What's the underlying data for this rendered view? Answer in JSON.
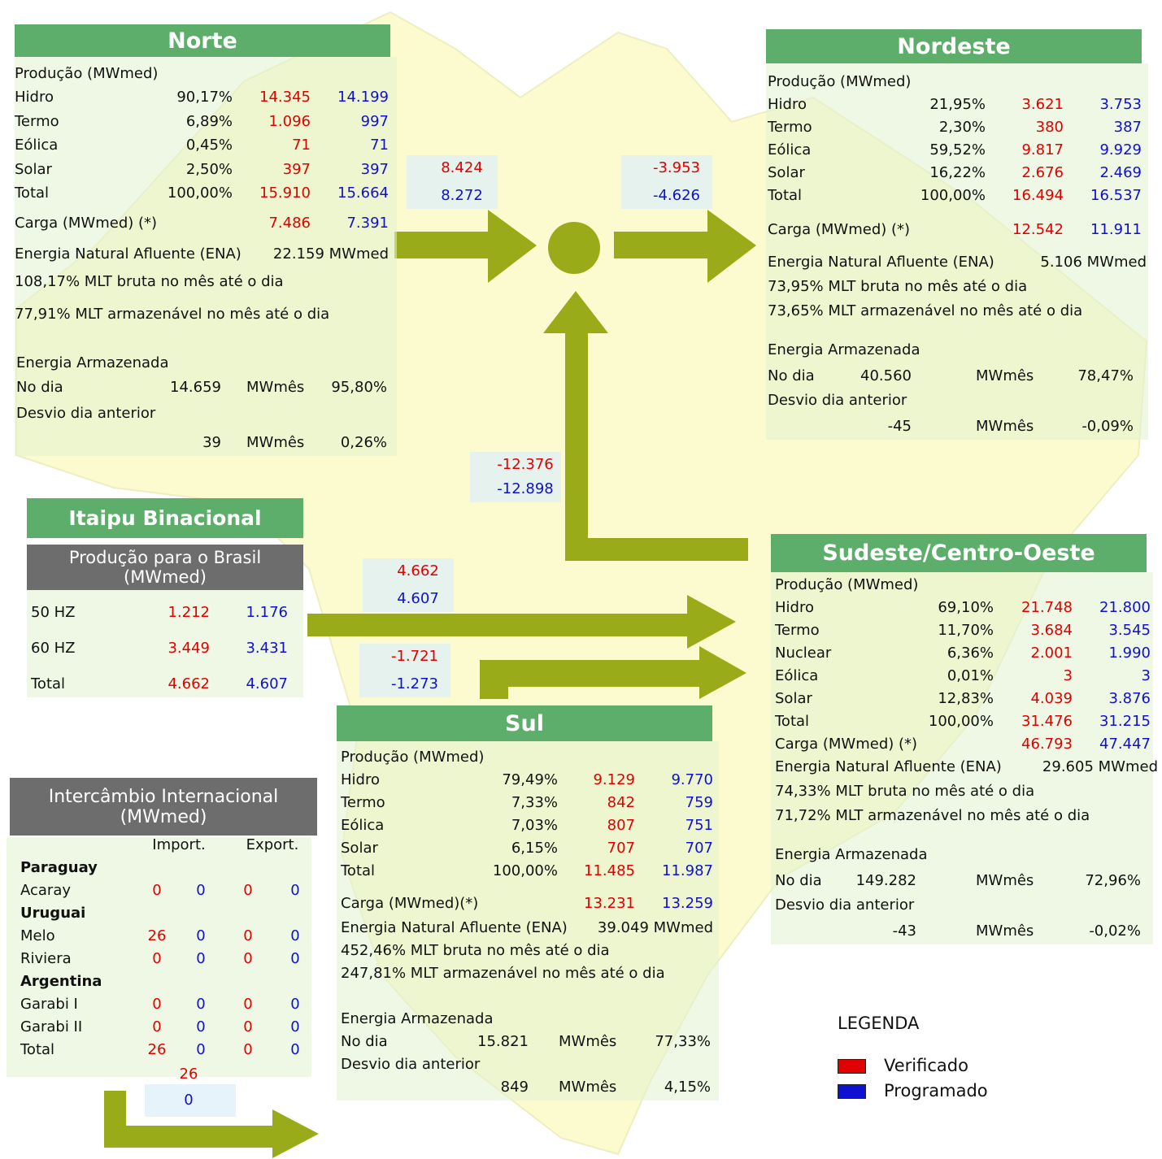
{
  "colors": {
    "verificado": "#e00000",
    "programado": "#1010d0"
  },
  "norte": {
    "title": "Norte",
    "producao": {
      "label": "Produção (MWmed)",
      "rows": [
        [
          "Hidro",
          "90,17%",
          "14.345",
          "14.199"
        ],
        [
          "Termo",
          "6,89%",
          "1.096",
          "997"
        ],
        [
          "Eólica",
          "0,45%",
          "71",
          "71"
        ],
        [
          "Solar",
          "2,50%",
          "397",
          "397"
        ],
        [
          "Total",
          "100,00%",
          "15.910",
          "15.664"
        ]
      ]
    },
    "carga": [
      "Carga (MWmed) (*)",
      "7.486",
      "7.391"
    ],
    "ena": [
      "Energia Natural Afluente (ENA)",
      "22.159 MWmed"
    ],
    "mlt_bruta": "108,17% MLT bruta no mês até o dia",
    "mlt_armazenavel": "77,91% MLT armazenável no mês até o dia",
    "armazenada": {
      "label": "Energia Armazenada",
      "no_dia": [
        "No dia",
        "14.659",
        "MWmês",
        "95,80%"
      ],
      "desvio_label": "Desvio dia anterior",
      "desvio": [
        "39",
        "MWmês",
        "0,26%"
      ]
    }
  },
  "nordeste": {
    "title": "Nordeste",
    "producao": {
      "label": "Produção (MWmed)",
      "rows": [
        [
          "Hidro",
          "21,95%",
          "3.621",
          "3.753"
        ],
        [
          "Termo",
          "2,30%",
          "380",
          "387"
        ],
        [
          "Eólica",
          "59,52%",
          "9.817",
          "9.929"
        ],
        [
          "Solar",
          "16,22%",
          "2.676",
          "2.469"
        ],
        [
          "Total",
          "100,00%",
          "16.494",
          "16.537"
        ]
      ]
    },
    "carga": [
      "Carga (MWmed) (*)",
      "12.542",
      "11.911"
    ],
    "ena": [
      "Energia Natural Afluente (ENA)",
      "5.106 MWmed"
    ],
    "mlt_bruta": "73,95% MLT bruta no mês até o dia",
    "mlt_armazenavel": "73,65% MLT armazenável no mês até o dia",
    "armazenada": {
      "label": "Energia Armazenada",
      "no_dia": [
        "No dia",
        "40.560",
        "MWmês",
        "78,47%"
      ],
      "desvio_label": "Desvio dia anterior",
      "desvio": [
        "-45",
        "MWmês",
        "-0,09%"
      ]
    }
  },
  "sudeste": {
    "title": "Sudeste/Centro-Oeste",
    "producao": {
      "label": "Produção (MWmed)",
      "rows": [
        [
          "Hidro",
          "69,10%",
          "21.748",
          "21.800"
        ],
        [
          "Termo",
          "11,70%",
          "3.684",
          "3.545"
        ],
        [
          "Nuclear",
          "6,36%",
          "2.001",
          "1.990"
        ],
        [
          "Eólica",
          "0,01%",
          "3",
          "3"
        ],
        [
          "Solar",
          "12,83%",
          "4.039",
          "3.876"
        ],
        [
          "Total",
          "100,00%",
          "31.476",
          "31.215"
        ]
      ]
    },
    "carga": [
      "Carga (MWmed) (*)",
      "46.793",
      "47.447"
    ],
    "ena": [
      "Energia Natural Afluente (ENA)",
      "29.605 MWmed"
    ],
    "mlt_bruta": "74,33% MLT bruta no mês até o dia",
    "mlt_armazenavel": "71,72% MLT armazenável no mês até o dia",
    "armazenada": {
      "label": "Energia Armazenada",
      "no_dia": [
        "No dia",
        "149.282",
        "MWmês",
        "72,96%"
      ],
      "desvio_label": "Desvio dia anterior",
      "desvio": [
        "-43",
        "MWmês",
        "-0,02%"
      ]
    }
  },
  "sul": {
    "title": "Sul",
    "producao": {
      "label": "Produção (MWmed)",
      "rows": [
        [
          "Hidro",
          "79,49%",
          "9.129",
          "9.770"
        ],
        [
          "Termo",
          "7,33%",
          "842",
          "759"
        ],
        [
          "Eólica",
          "7,03%",
          "807",
          "751"
        ],
        [
          "Solar",
          "6,15%",
          "707",
          "707"
        ],
        [
          "Total",
          "100,00%",
          "11.485",
          "11.987"
        ]
      ]
    },
    "carga": [
      "Carga (MWmed)(*)",
      "13.231",
      "13.259"
    ],
    "ena": [
      "Energia Natural Afluente (ENA)",
      "39.049 MWmed"
    ],
    "mlt_bruta": "452,46% MLT bruta no mês até o dia",
    "mlt_armazenavel": "247,81% MLT armazenável no mês até o dia",
    "armazenada": {
      "label": "Energia Armazenada",
      "no_dia": [
        "No dia",
        "15.821",
        "MWmês",
        "77,33%"
      ],
      "desvio_label": "Desvio dia anterior",
      "desvio": [
        "849",
        "MWmês",
        "4,15%"
      ]
    }
  },
  "itaipu": {
    "title": "Itaipu Binacional",
    "subtitle": "Produção para o Brasil (MWmed)",
    "rows": [
      [
        "50 HZ",
        "1.212",
        "1.176"
      ],
      [
        "60 HZ",
        "3.449",
        "3.431"
      ],
      [
        "Total",
        "4.662",
        "4.607"
      ]
    ]
  },
  "internacional": {
    "title": "Intercâmbio Internacional (MWmed)",
    "import_label": "Import.",
    "export_label": "Export.",
    "countries": [
      {
        "name": "Paraguay",
        "plants": [
          [
            "Acaray",
            "0",
            "0",
            "0",
            "0"
          ]
        ]
      },
      {
        "name": "Uruguai",
        "plants": [
          [
            "Melo",
            "26",
            "0",
            "0",
            "0"
          ],
          [
            "Riviera",
            "0",
            "0",
            "0",
            "0"
          ]
        ]
      },
      {
        "name": "Argentina",
        "plants": [
          [
            "Garabi I",
            "0",
            "0",
            "0",
            "0"
          ],
          [
            "Garabi II",
            "0",
            "0",
            "0",
            "0"
          ]
        ]
      }
    ],
    "total": [
      "Total",
      "26",
      "0",
      "0",
      "0"
    ],
    "flow": [
      "26",
      "0"
    ]
  },
  "fluxos": {
    "norte": [
      "8.424",
      "8.272"
    ],
    "nordeste": [
      "-3.953",
      "-4.626"
    ],
    "sudeste": [
      "-12.376",
      "-12.898"
    ],
    "itaipu": [
      "4.662",
      "4.607"
    ],
    "sul": [
      "-1.721",
      "-1.273"
    ]
  },
  "legenda": {
    "title": "LEGENDA",
    "items": [
      "Verificado",
      "Programado"
    ]
  }
}
